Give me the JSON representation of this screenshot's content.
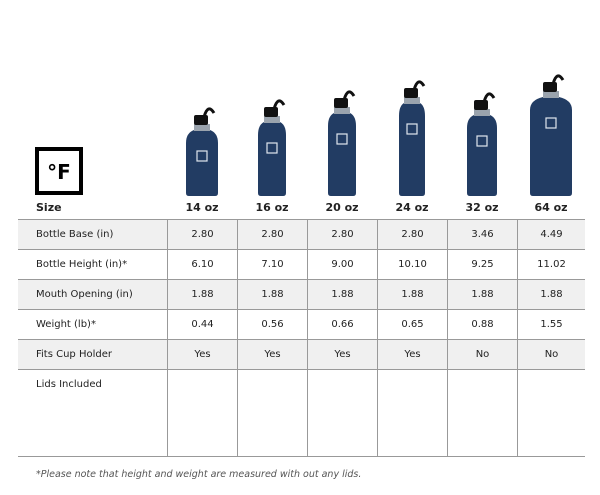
{
  "logo": "°F",
  "table": {
    "header": [
      "Size",
      "14 oz",
      "16 oz",
      "20 oz",
      "24 oz",
      "32 oz",
      "64 oz"
    ],
    "rows": [
      [
        "Bottle Base (in)",
        "2.80",
        "2.80",
        "2.80",
        "2.80",
        "3.46",
        "4.49"
      ],
      [
        "Bottle Height (in)*",
        "6.10",
        "7.10",
        "9.00",
        "10.10",
        "9.25",
        "11.02"
      ],
      [
        "Mouth Opening (in)",
        "1.88",
        "1.88",
        "1.88",
        "1.88",
        "1.88",
        "1.88"
      ],
      [
        "Weight (lb)*",
        "0.44",
        "0.56",
        "0.66",
        "0.65",
        "0.88",
        "1.55"
      ],
      [
        "Fits Cup Holder",
        "Yes",
        "Yes",
        "Yes",
        "Yes",
        "No",
        "No"
      ],
      [
        "Lids Included"
      ]
    ]
  },
  "footnote": "*Please note that height and weight are measured with out any lids."
}
